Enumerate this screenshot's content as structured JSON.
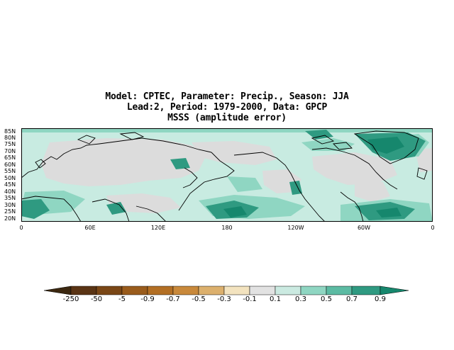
{
  "title": {
    "line1": "Model: CPTEC, Parameter: Precip., Season: JJA",
    "line2": "Lead:2, Period: 1979-2000, Data: GPCP",
    "line3": "MSSS (amplitude error)"
  },
  "map": {
    "lat_labels": [
      "85N",
      "80N",
      "75N",
      "70N",
      "65N",
      "60N",
      "55N",
      "50N",
      "45N",
      "40N",
      "35N",
      "30N",
      "25N",
      "20N"
    ],
    "lon_labels": [
      "0",
      "60E",
      "120E",
      "180",
      "120W",
      "60W",
      "0"
    ],
    "land_color": "#dcdcdc",
    "ocean_color": "#c8ebe1"
  },
  "legend": {
    "labels": [
      "-250",
      "-50",
      "-5",
      "-0.9",
      "-0.7",
      "-0.5",
      "-0.3",
      "-0.1",
      "0.1",
      "0.3",
      "0.5",
      "0.7",
      "0.9"
    ],
    "colors": [
      "#3c2810",
      "#5a3414",
      "#7a4716",
      "#9a5c1c",
      "#b36f24",
      "#c9893b",
      "#dcb06d",
      "#f3e3bf",
      "#e2e2e2",
      "#cbeae1",
      "#8fd6c2",
      "#5cbba3",
      "#2f9a81",
      "#16876d"
    ]
  }
}
